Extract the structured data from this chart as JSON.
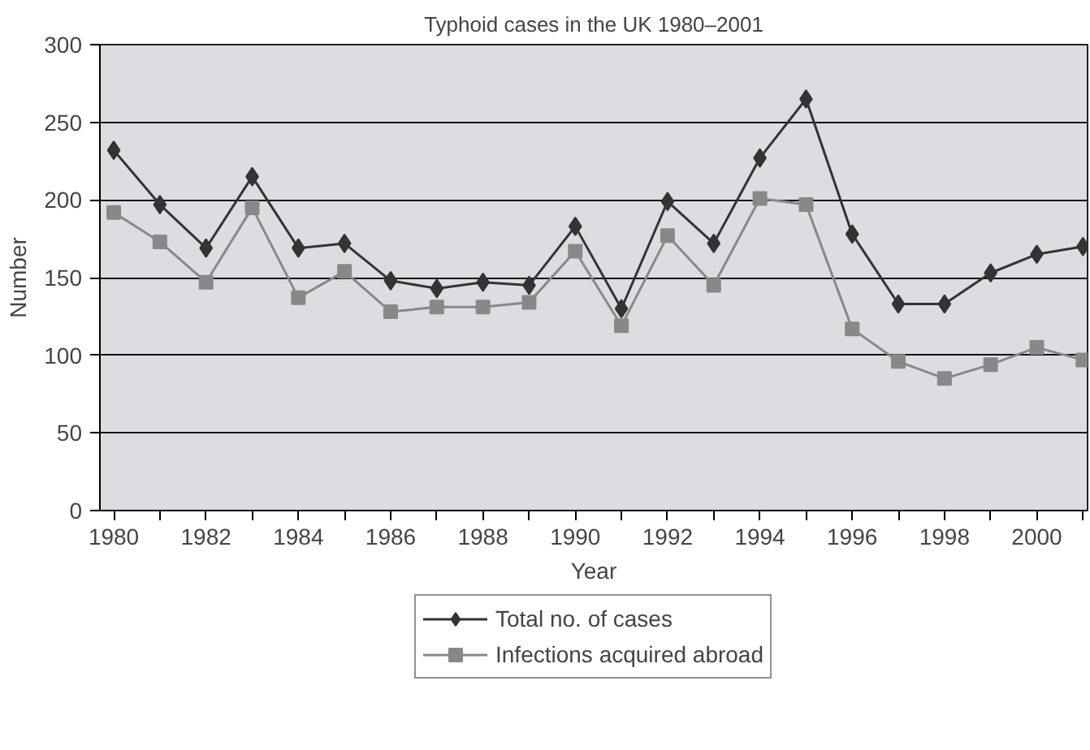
{
  "chart_data": {
    "type": "line",
    "title": "Typhoid cases in the UK 1980–2001",
    "xlabel": "Year",
    "ylabel": "Number",
    "x": [
      1980,
      1981,
      1982,
      1983,
      1984,
      1985,
      1986,
      1987,
      1988,
      1989,
      1990,
      1991,
      1992,
      1993,
      1994,
      1995,
      1996,
      1997,
      1998,
      1999,
      2000,
      2001
    ],
    "series": [
      {
        "name": "Total no. of cases",
        "color": "#333333",
        "marker": "diamond",
        "values": [
          232,
          197,
          169,
          215,
          169,
          172,
          148,
          143,
          147,
          145,
          183,
          130,
          199,
          172,
          227,
          265,
          178,
          133,
          133,
          153,
          165,
          170
        ]
      },
      {
        "name": "Infections acquired abroad",
        "color": "#888888",
        "marker": "square",
        "values": [
          192,
          173,
          147,
          195,
          137,
          154,
          128,
          131,
          131,
          134,
          167,
          119,
          177,
          145,
          201,
          197,
          117,
          96,
          85,
          94,
          105,
          97
        ]
      }
    ],
    "xlim": [
      1979.7,
      2001.1
    ],
    "xticks": [
      1980,
      {
        "value": 1981,
        "label": null
      },
      1982,
      {
        "value": 1983,
        "label": null
      },
      1984,
      {
        "value": 1985,
        "label": null
      },
      1986,
      {
        "value": 1987,
        "label": null
      },
      1988,
      {
        "value": 1989,
        "label": null
      },
      1990,
      {
        "value": 1991,
        "label": null
      },
      1992,
      {
        "value": 1993,
        "label": null
      },
      1994,
      {
        "value": 1995,
        "label": null
      },
      1996,
      {
        "value": 1997,
        "label": null
      },
      1998,
      {
        "value": 1999,
        "label": null
      },
      2000,
      {
        "value": 2001,
        "label": null
      }
    ],
    "ylim": [
      0,
      300
    ],
    "yticks": [
      0,
      50,
      100,
      150,
      200,
      250,
      300
    ],
    "grid": "y",
    "legend": "bottom",
    "line_style": "solid"
  }
}
